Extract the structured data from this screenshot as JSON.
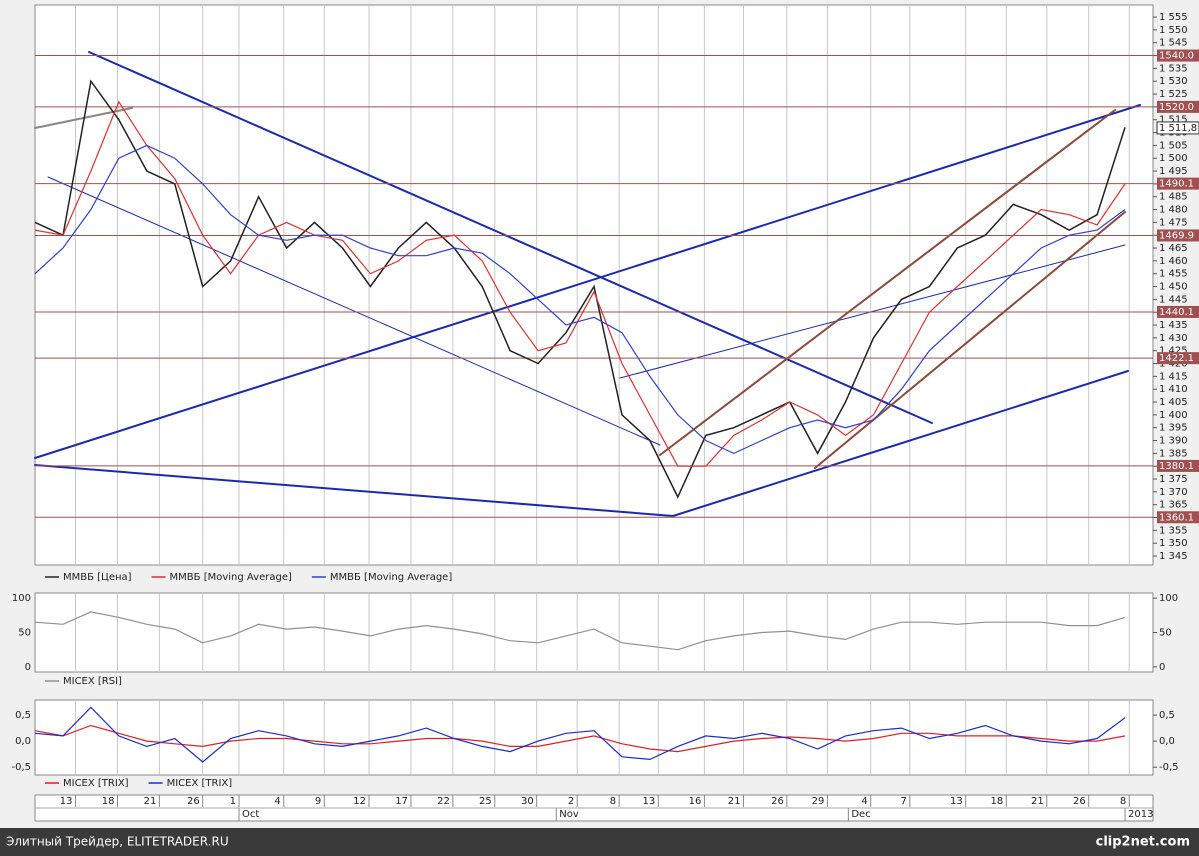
{
  "chart_data": [
    {
      "type": "line",
      "name": "price",
      "x": [
        0,
        2,
        4,
        6,
        8,
        10,
        12,
        14,
        16,
        18,
        20,
        22,
        24,
        26,
        28,
        30,
        32,
        34,
        36,
        38,
        40,
        42,
        44,
        46,
        48,
        50,
        52,
        54,
        56,
        58,
        60,
        62,
        64,
        66,
        68,
        70,
        72,
        74,
        76,
        78
      ],
      "xlim": [
        0,
        80
      ],
      "series": [
        {
          "name": "ММВБ [Цена]",
          "color": "#222222",
          "values": [
            1475,
            1470,
            1530,
            1515,
            1495,
            1490,
            1450,
            1460,
            1485,
            1465,
            1475,
            1465,
            1450,
            1465,
            1475,
            1465,
            1450,
            1425,
            1420,
            1432,
            1450,
            1400,
            1390,
            1368,
            1392,
            1395,
            1400,
            1405,
            1385,
            1405,
            1430,
            1445,
            1450,
            1465,
            1470,
            1482,
            1478,
            1472,
            1478,
            1512
          ]
        },
        {
          "name": "ММВБ [Moving Average]",
          "color": "#e03030",
          "values": [
            1472,
            1470,
            1495,
            1522,
            1505,
            1492,
            1470,
            1455,
            1470,
            1475,
            1470,
            1468,
            1455,
            1460,
            1468,
            1470,
            1460,
            1440,
            1425,
            1428,
            1448,
            1420,
            1400,
            1380,
            1380,
            1392,
            1398,
            1405,
            1400,
            1392,
            1400,
            1420,
            1440,
            1450,
            1460,
            1470,
            1480,
            1478,
            1474,
            1490
          ]
        },
        {
          "name": "ММВБ [Moving Average]",
          "color": "#3040d0",
          "values": [
            1455,
            1465,
            1480,
            1500,
            1505,
            1500,
            1490,
            1478,
            1470,
            1468,
            1470,
            1470,
            1465,
            1462,
            1462,
            1465,
            1463,
            1455,
            1445,
            1435,
            1438,
            1432,
            1415,
            1400,
            1390,
            1385,
            1390,
            1395,
            1398,
            1395,
            1398,
            1410,
            1425,
            1435,
            1445,
            1455,
            1465,
            1470,
            1472,
            1480
          ]
        }
      ],
      "ylim": [
        1341.5,
        1559.7
      ],
      "yticks": [
        {
          "value": 1345,
          "label": "1 345"
        },
        {
          "value": 1350,
          "label": "1 350"
        },
        {
          "value": 1355,
          "label": "1 355"
        },
        {
          "value": 1360,
          "label": "1 360"
        },
        {
          "value": 1365,
          "label": "1 365"
        },
        {
          "value": 1370,
          "label": "1 370"
        },
        {
          "value": 1375,
          "label": "1 375"
        },
        {
          "value": 1380,
          "label": "1 380"
        },
        {
          "value": 1385,
          "label": "1 385"
        },
        {
          "value": 1390,
          "label": "1 390"
        },
        {
          "value": 1395,
          "label": "1 395"
        },
        {
          "value": 1400,
          "label": "1 400"
        },
        {
          "value": 1405,
          "label": "1 405"
        },
        {
          "value": 1410,
          "label": "1 410"
        },
        {
          "value": 1415,
          "label": "1 415"
        },
        {
          "value": 1420,
          "label": "1 420"
        },
        {
          "value": 1425,
          "label": "1 425"
        },
        {
          "value": 1430,
          "label": "1 430"
        },
        {
          "value": 1435,
          "label": "1 435"
        },
        {
          "value": 1440,
          "label": "1 440"
        },
        {
          "value": 1445,
          "label": "1 445"
        },
        {
          "value": 1450,
          "label": "1 450"
        },
        {
          "value": 1455,
          "label": "1 455"
        },
        {
          "value": 1460,
          "label": "1 460"
        },
        {
          "value": 1465,
          "label": "1 465"
        },
        {
          "value": 1470,
          "label": "1 470"
        },
        {
          "value": 1475,
          "label": "1 475"
        },
        {
          "value": 1480,
          "label": "1 480"
        },
        {
          "value": 1485,
          "label": "1 485"
        },
        {
          "value": 1490,
          "label": "1 490"
        },
        {
          "value": 1495,
          "label": "1 495"
        },
        {
          "value": 1500,
          "label": "1 500"
        },
        {
          "value": 1505,
          "label": "1 505"
        },
        {
          "value": 1510,
          "label": "1 510"
        },
        {
          "value": 1515,
          "label": "1 515"
        },
        {
          "value": 1520,
          "label": "1 520"
        },
        {
          "value": 1525,
          "label": "1 525"
        },
        {
          "value": 1530,
          "label": "1 530"
        },
        {
          "value": 1535,
          "label": "1 535"
        },
        {
          "value": 1540,
          "label": "1 540"
        },
        {
          "value": 1545,
          "label": "1 545"
        },
        {
          "value": 1550,
          "label": "1 550"
        },
        {
          "value": 1555,
          "label": "1 555"
        }
      ],
      "levels": [
        {
          "value": 1540.0,
          "label": "1540.0"
        },
        {
          "value": 1520.0,
          "label": "1520.0"
        },
        {
          "value": 1490.1,
          "label": "1490.1"
        },
        {
          "value": 1469.9,
          "label": "1469.9"
        },
        {
          "value": 1440.1,
          "label": "1440.1"
        },
        {
          "value": 1422.1,
          "label": "1422.1"
        },
        {
          "value": 1380.1,
          "label": "1380.1"
        },
        {
          "value": 1360.1,
          "label": "1360.1"
        }
      ],
      "level_color": "#a05050",
      "last_price": {
        "value": 1511.8,
        "label": "1 511,8"
      },
      "xticks": [
        {
          "value": 2.9,
          "label": "13"
        },
        {
          "value": 5.9,
          "label": "18"
        },
        {
          "value": 8.9,
          "label": "21"
        },
        {
          "value": 12,
          "label": "26"
        },
        {
          "value": 14.6,
          "label": "1"
        },
        {
          "value": 17.8,
          "label": "4"
        },
        {
          "value": 20.7,
          "label": "9"
        },
        {
          "value": 23.9,
          "label": "12"
        },
        {
          "value": 26.9,
          "label": "17"
        },
        {
          "value": 29.9,
          "label": "22"
        },
        {
          "value": 32.9,
          "label": "25"
        },
        {
          "value": 35.9,
          "label": "30"
        },
        {
          "value": 38.8,
          "label": "2"
        },
        {
          "value": 41.8,
          "label": "8"
        },
        {
          "value": 44.6,
          "label": "13"
        },
        {
          "value": 47.9,
          "label": "16"
        },
        {
          "value": 50.7,
          "label": "21"
        },
        {
          "value": 53.8,
          "label": "26"
        },
        {
          "value": 56.7,
          "label": "29"
        },
        {
          "value": 59.8,
          "label": "4"
        },
        {
          "value": 62.6,
          "label": "7"
        },
        {
          "value": 66.6,
          "label": "13"
        },
        {
          "value": 69.5,
          "label": "18"
        },
        {
          "value": 72.4,
          "label": "21"
        },
        {
          "value": 75.4,
          "label": "26"
        },
        {
          "value": 78.3,
          "label": "8"
        }
      ],
      "months": [
        {
          "value": 14.6,
          "label": "Oct"
        },
        {
          "value": 37.3,
          "label": "Nov"
        },
        {
          "value": 58.2,
          "label": "Dec"
        },
        {
          "value": 78,
          "label": "2013"
        }
      ]
    },
    {
      "type": "line",
      "name": "rsi",
      "series": [
        {
          "name": "MICEX [RSI]",
          "color": "#909090",
          "values": [
            65,
            62,
            80,
            72,
            62,
            55,
            35,
            45,
            62,
            55,
            58,
            52,
            45,
            55,
            60,
            55,
            48,
            38,
            35,
            45,
            55,
            35,
            30,
            25,
            38,
            45,
            50,
            52,
            45,
            40,
            55,
            65,
            65,
            62,
            65,
            65,
            65,
            60,
            60,
            72
          ]
        }
      ],
      "ylim": [
        -7.5,
        107.5
      ],
      "yticks": [
        0,
        50,
        100
      ]
    },
    {
      "type": "line",
      "name": "trix",
      "series": [
        {
          "name": "MICEX [TRIX]",
          "color": "#e02020",
          "values": [
            0.2,
            0.1,
            0.3,
            0.15,
            0,
            -0.05,
            -0.1,
            0,
            0.05,
            0.05,
            0,
            -0.05,
            -0.05,
            0,
            0.05,
            0.05,
            0,
            -0.1,
            -0.1,
            0,
            0.1,
            -0.05,
            -0.15,
            -0.2,
            -0.1,
            0,
            0.05,
            0.08,
            0.05,
            0,
            0.05,
            0.15,
            0.15,
            0.1,
            0.1,
            0.1,
            0.05,
            0,
            0,
            0.1
          ]
        },
        {
          "name": "MICEX [TRIX]",
          "color": "#1a2ad0",
          "values": [
            0.15,
            0.1,
            0.65,
            0.1,
            -0.1,
            0.05,
            -0.4,
            0.05,
            0.2,
            0.1,
            -0.05,
            -0.1,
            0,
            0.1,
            0.25,
            0.05,
            -0.1,
            -0.2,
            0,
            0.15,
            0.2,
            -0.3,
            -0.35,
            -0.1,
            0.1,
            0.05,
            0.15,
            0.05,
            -0.15,
            0.1,
            0.2,
            0.25,
            0.05,
            0.15,
            0.3,
            0.1,
            0,
            -0.05,
            0.05,
            0.45
          ]
        }
      ],
      "ylim": [
        -0.65,
        0.79
      ],
      "yticks": [
        {
          "value": 0.5,
          "label": "0,5"
        },
        {
          "value": 0,
          "label": "0,0"
        },
        {
          "value": -0.5,
          "label": "-0,5"
        }
      ]
    }
  ],
  "footer": {
    "text": "Элитный Трейдер, ELITETRADER.RU",
    "logo": "clip2net.com"
  }
}
